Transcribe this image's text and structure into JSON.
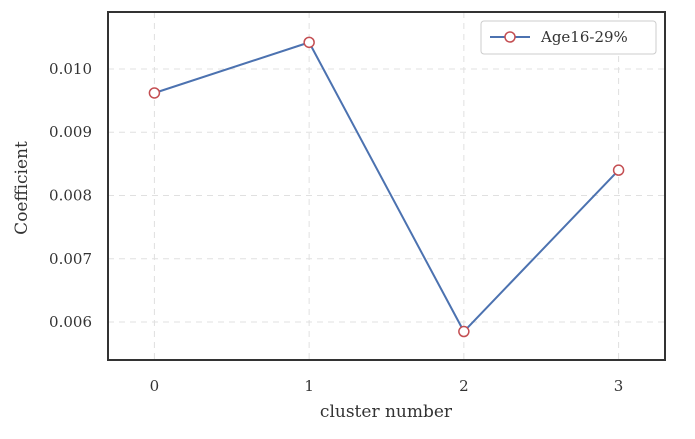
{
  "chart_data": {
    "type": "line",
    "x": [
      0,
      1,
      2,
      3
    ],
    "series": [
      {
        "name": "Age16-29%",
        "values": [
          0.00962,
          0.01042,
          0.00585,
          0.0084
        ]
      }
    ],
    "xlabel": "cluster number",
    "ylabel": "Coefficient",
    "xticks": [
      0,
      1,
      2,
      3
    ],
    "yticks": [
      0.006,
      0.007,
      0.008,
      0.009,
      0.01
    ],
    "ytick_labels": [
      "0.006",
      "0.007",
      "0.008",
      "0.009",
      "0.010"
    ],
    "xlim": [
      -0.3,
      3.3
    ],
    "ylim": [
      0.0054,
      0.0109
    ],
    "grid": true,
    "legend_position": "top-right",
    "colors": {
      "line": "#4c72b0",
      "marker_edge": "#c44e52",
      "marker_face": "#ffffff",
      "grid": "#e0e0e0",
      "frame": "#333333"
    }
  }
}
